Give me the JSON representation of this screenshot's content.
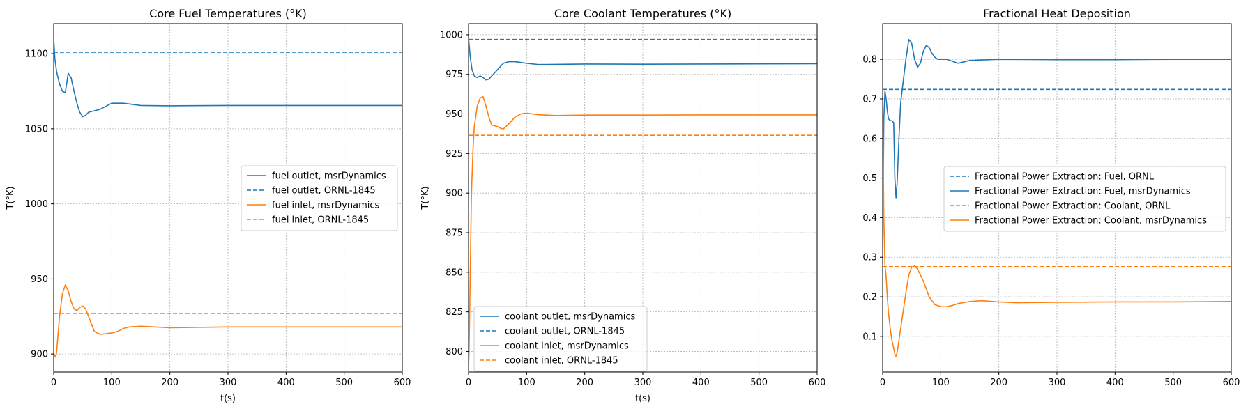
{
  "chart_data": [
    {
      "type": "line",
      "title": "Core Fuel Temperatures (°K)",
      "xlabel": "t(s)",
      "ylabel": "T(°K)",
      "xlim": [
        0,
        600
      ],
      "ylim": [
        888,
        1120
      ],
      "xticks": [
        0,
        100,
        200,
        300,
        400,
        500,
        600
      ],
      "yticks": [
        900,
        950,
        1000,
        1050,
        1100
      ],
      "grid": true,
      "legend_position": "center-right",
      "series": [
        {
          "name": "fuel outlet, msrDynamics",
          "color": "#1f77b4",
          "dash": false,
          "x": [
            0,
            2,
            5,
            10,
            15,
            20,
            25,
            30,
            35,
            40,
            45,
            50,
            55,
            60,
            70,
            80,
            90,
            100,
            110,
            120,
            150,
            200,
            300,
            400,
            500,
            600
          ],
          "y": [
            1110,
            1097,
            1088,
            1080,
            1075,
            1074,
            1087,
            1084,
            1075,
            1067,
            1061,
            1058,
            1059,
            1061,
            1062,
            1063,
            1065,
            1067,
            1067,
            1067,
            1065.5,
            1065.3,
            1065.5,
            1065.5,
            1065.5,
            1065.5
          ]
        },
        {
          "name": "fuel outlet, ORNL-1845",
          "color": "#1f77b4",
          "dash": true,
          "x": [
            0,
            600
          ],
          "y": [
            1101,
            1101
          ]
        },
        {
          "name": "fuel inlet, msrDynamics",
          "color": "#ff7f0e",
          "dash": false,
          "x": [
            0,
            3,
            5,
            10,
            15,
            20,
            25,
            30,
            35,
            40,
            45,
            50,
            55,
            60,
            65,
            70,
            80,
            90,
            100,
            110,
            120,
            130,
            150,
            200,
            300,
            400,
            500,
            600
          ],
          "y": [
            900,
            898,
            901,
            925,
            940,
            946,
            942,
            935,
            930,
            929,
            931,
            932,
            930,
            925,
            920,
            915,
            913,
            913.5,
            914,
            915,
            917,
            918,
            918.5,
            917.5,
            918,
            918,
            918,
            918
          ]
        },
        {
          "name": "fuel inlet, ORNL-1845",
          "color": "#ff7f0e",
          "dash": true,
          "x": [
            0,
            600
          ],
          "y": [
            927,
            927
          ]
        }
      ]
    },
    {
      "type": "line",
      "title": "Core Coolant Temperatures (°K)",
      "xlabel": "t(s)",
      "ylabel": "T(°K)",
      "xlim": [
        0,
        600
      ],
      "ylim": [
        787,
        1007
      ],
      "xticks": [
        0,
        100,
        200,
        300,
        400,
        500,
        600
      ],
      "yticks": [
        800,
        825,
        850,
        875,
        900,
        925,
        950,
        975,
        1000
      ],
      "grid": true,
      "legend_position": "lower-left",
      "series": [
        {
          "name": "coolant outlet, msrDynamics",
          "color": "#1f77b4",
          "dash": false,
          "x": [
            0,
            3,
            6,
            10,
            15,
            20,
            25,
            30,
            35,
            40,
            50,
            60,
            70,
            80,
            90,
            100,
            120,
            150,
            200,
            300,
            400,
            500,
            600
          ],
          "y": [
            998,
            986,
            978,
            974,
            973,
            974,
            973,
            971.5,
            972,
            974,
            978,
            982,
            983,
            983,
            982.5,
            982,
            981.2,
            981.3,
            981.5,
            981.4,
            981.5,
            981.6,
            981.7
          ]
        },
        {
          "name": "coolant outlet, ORNL-1845",
          "color": "#1f77b4",
          "dash": true,
          "x": [
            0,
            600
          ],
          "y": [
            997,
            997
          ]
        },
        {
          "name": "coolant inlet, msrDynamics",
          "color": "#ff7f0e",
          "dash": false,
          "x": [
            0,
            1,
            3,
            5,
            8,
            10,
            15,
            20,
            25,
            30,
            35,
            40,
            45,
            50,
            55,
            60,
            70,
            80,
            90,
            100,
            120,
            150,
            200,
            300,
            400,
            500,
            600
          ],
          "y": [
            790,
            800,
            850,
            900,
            930,
            942,
            955,
            960,
            961,
            955,
            948,
            943,
            942.5,
            942,
            941,
            940.5,
            944,
            948,
            950,
            950.5,
            949.5,
            949,
            949.3,
            949.3,
            949.4,
            949.4,
            949.4
          ]
        },
        {
          "name": "coolant inlet, ORNL-1845",
          "color": "#ff7f0e",
          "dash": true,
          "x": [
            0,
            600
          ],
          "y": [
            936.5,
            936.5
          ]
        }
      ]
    },
    {
      "type": "line",
      "title": "Fractional Heat Deposition",
      "xlabel": "",
      "ylabel": "",
      "xlim": [
        0,
        600
      ],
      "ylim": [
        0.01,
        0.89
      ],
      "xticks": [
        0,
        100,
        200,
        300,
        400,
        500,
        600
      ],
      "yticks": [
        0.1,
        0.2,
        0.3,
        0.4,
        0.5,
        0.6,
        0.7,
        0.8
      ],
      "ytick_labels": [
        "0.1",
        "0.2",
        "0.3",
        "0.4",
        "0.5",
        "0.6",
        "0.7",
        "0.8"
      ],
      "grid": true,
      "legend_position": "center-right",
      "series": [
        {
          "name": "Fractional Power Extraction: Fuel, ORNL",
          "color": "#1f77b4",
          "dash": true,
          "x": [
            0,
            600
          ],
          "y": [
            0.724,
            0.724
          ]
        },
        {
          "name": "Fractional Power Extraction: Fuel, msrDynamics",
          "color": "#1f77b4",
          "dash": false,
          "x": [
            0,
            2,
            4,
            6,
            8,
            10,
            13,
            16,
            19,
            21,
            23,
            25,
            28,
            31,
            35,
            40,
            45,
            50,
            55,
            60,
            65,
            70,
            75,
            80,
            85,
            90,
            95,
            100,
            110,
            120,
            130,
            150,
            200,
            300,
            400,
            500,
            600
          ],
          "y": [
            0.3,
            0.65,
            0.72,
            0.7,
            0.67,
            0.65,
            0.645,
            0.645,
            0.64,
            0.5,
            0.45,
            0.49,
            0.6,
            0.69,
            0.74,
            0.8,
            0.85,
            0.84,
            0.8,
            0.78,
            0.79,
            0.82,
            0.835,
            0.83,
            0.815,
            0.805,
            0.8,
            0.8,
            0.8,
            0.795,
            0.79,
            0.797,
            0.8,
            0.799,
            0.799,
            0.8,
            0.8
          ]
        },
        {
          "name": "Fractional Power Extraction: Coolant, ORNL",
          "color": "#ff7f0e",
          "dash": true,
          "x": [
            0,
            600
          ],
          "y": [
            0.276,
            0.276
          ]
        },
        {
          "name": "Fractional Power Extraction: Coolant, msrDynamics",
          "color": "#ff7f0e",
          "dash": false,
          "x": [
            0,
            2,
            4,
            6,
            8,
            10,
            13,
            16,
            19,
            21,
            23,
            25,
            28,
            31,
            35,
            40,
            45,
            50,
            55,
            60,
            65,
            70,
            80,
            90,
            100,
            110,
            120,
            130,
            150,
            170,
            200,
            230,
            300,
            400,
            500,
            600
          ],
          "y": [
            0.7,
            0.4,
            0.28,
            0.25,
            0.2,
            0.16,
            0.12,
            0.09,
            0.07,
            0.055,
            0.05,
            0.06,
            0.09,
            0.12,
            0.16,
            0.21,
            0.255,
            0.275,
            0.278,
            0.27,
            0.255,
            0.24,
            0.2,
            0.18,
            0.175,
            0.175,
            0.178,
            0.183,
            0.188,
            0.19,
            0.187,
            0.185,
            0.186,
            0.187,
            0.187,
            0.188
          ]
        }
      ]
    }
  ]
}
